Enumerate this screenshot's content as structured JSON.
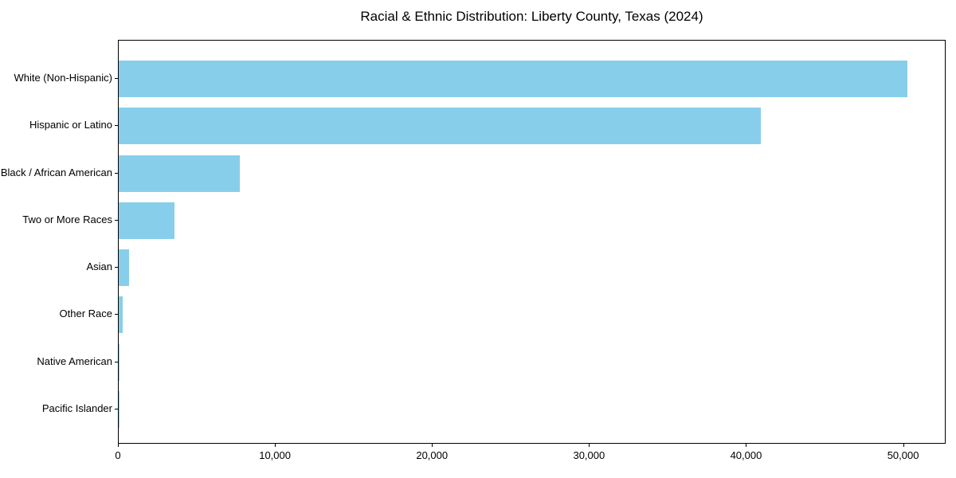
{
  "chart_data": {
    "type": "bar",
    "orientation": "horizontal",
    "title": "Racial & Ethnic Distribution: Liberty County, Texas (2024)",
    "categories": [
      "White (Non-Hispanic)",
      "Hispanic or Latino",
      "Black / African American",
      "Two or More Races",
      "Asian",
      "Other Race",
      "Native American",
      "Pacific Islander"
    ],
    "values": [
      50200,
      40900,
      7700,
      3570,
      640,
      270,
      75,
      20
    ],
    "bar_color": "#87CEEB",
    "xlim": [
      0,
      52710
    ],
    "x_ticks": [
      {
        "value": 0,
        "label": "0"
      },
      {
        "value": 10000,
        "label": "10,000"
      },
      {
        "value": 20000,
        "label": "20,000"
      },
      {
        "value": 30000,
        "label": "30,000"
      },
      {
        "value": 40000,
        "label": "40,000"
      },
      {
        "value": 50000,
        "label": "50,000"
      }
    ],
    "xlabel": "",
    "ylabel": "",
    "grid": false,
    "legend": null,
    "axis_color": "#000000",
    "background_color": "#ffffff"
  }
}
